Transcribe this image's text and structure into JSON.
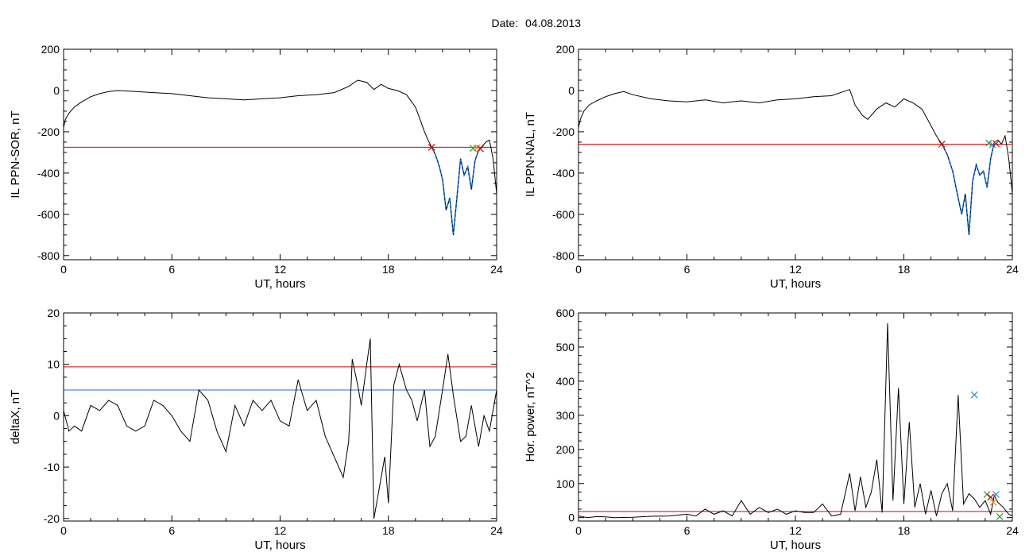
{
  "figure": {
    "title_prefix": "Date:",
    "date": "04.08.2013"
  },
  "colors": {
    "trace": "#000000",
    "threshold_red": "#d00000",
    "threshold_blue": "#1f6fd0",
    "highlight": "#1f6fd0",
    "marker_red": "#d00000",
    "marker_green": "#2a9a2a",
    "marker_orange": "#e08a00",
    "marker_blue": "#1f8fd0"
  },
  "chart_data": [
    {
      "id": "sor",
      "type": "line",
      "xlabel": "UT, hours",
      "ylabel": "IL PPN-SOR, nT",
      "xlim": [
        0,
        24
      ],
      "ylim": [
        -820,
        200
      ],
      "xticks": [
        0,
        6,
        12,
        18,
        24
      ],
      "yticks": [
        -800,
        -600,
        -400,
        -200,
        0,
        200
      ],
      "hlines": [
        {
          "y": -275,
          "color": "red"
        }
      ],
      "series": [
        {
          "x": [
            0,
            0.1,
            0.3,
            0.6,
            1,
            1.5,
            2,
            2.5,
            3,
            4,
            5,
            6,
            7,
            8,
            9,
            10,
            11,
            12,
            13,
            14,
            15,
            15.8,
            16.3,
            16.8,
            17.2,
            17.6,
            18,
            18.5,
            19,
            19.5,
            19.8,
            20,
            20.2,
            20.4
          ],
          "y": [
            -180,
            -140,
            -110,
            -80,
            -55,
            -30,
            -15,
            -5,
            0,
            -5,
            -10,
            -15,
            -25,
            -35,
            -40,
            -45,
            -40,
            -35,
            -25,
            -20,
            -10,
            20,
            50,
            40,
            5,
            30,
            10,
            0,
            -20,
            -80,
            -150,
            -200,
            -240,
            -275
          ]
        }
      ],
      "highlight_series": {
        "x": [
          20.4,
          20.6,
          20.8,
          21,
          21.2,
          21.4,
          21.6,
          21.8,
          22,
          22.2,
          22.4,
          22.6,
          22.8,
          23
        ],
        "y": [
          -275,
          -310,
          -360,
          -430,
          -580,
          -520,
          -700,
          -520,
          -330,
          -410,
          -370,
          -480,
          -340,
          -290
        ]
      },
      "tail_series": {
        "x": [
          23,
          23.2,
          23.4,
          23.6,
          23.8,
          24
        ],
        "y": [
          -290,
          -270,
          -250,
          -240,
          -330,
          -500
        ]
      },
      "markers": [
        {
          "x": 20.4,
          "y": -275,
          "color": "red"
        },
        {
          "x": 22.7,
          "y": -280,
          "color": "green"
        },
        {
          "x": 22.9,
          "y": -278,
          "color": "orange"
        },
        {
          "x": 23.1,
          "y": -282,
          "color": "red"
        }
      ]
    },
    {
      "id": "nal",
      "type": "line",
      "xlabel": "UT, hours",
      "ylabel": "IL PPN-NAL, nT",
      "xlim": [
        0,
        24
      ],
      "ylim": [
        -820,
        200
      ],
      "xticks": [
        0,
        6,
        12,
        18,
        24
      ],
      "yticks": [
        -800,
        -600,
        -400,
        -200,
        0,
        200
      ],
      "hlines": [
        {
          "y": -260,
          "color": "red"
        }
      ],
      "series": [
        {
          "x": [
            0,
            0.1,
            0.3,
            0.6,
            1,
            1.5,
            2,
            2.5,
            3,
            4,
            5,
            6,
            7,
            8,
            9,
            10,
            11,
            12,
            13,
            14,
            15,
            15.3,
            15.7,
            16,
            16.5,
            17,
            17.5,
            18,
            18.5,
            19,
            19.5,
            19.8,
            20.1
          ],
          "y": [
            -180,
            -140,
            -100,
            -70,
            -50,
            -30,
            -15,
            -5,
            -20,
            -40,
            -50,
            -55,
            -45,
            -60,
            -50,
            -60,
            -45,
            -40,
            -30,
            -25,
            5,
            -70,
            -120,
            -140,
            -90,
            -60,
            -80,
            -40,
            -60,
            -90,
            -170,
            -220,
            -260
          ]
        }
      ],
      "highlight_series": {
        "x": [
          20.1,
          20.4,
          20.7,
          21,
          21.2,
          21.4,
          21.6,
          21.8,
          22,
          22.2,
          22.4,
          22.6,
          22.8,
          23
        ],
        "y": [
          -260,
          -310,
          -390,
          -520,
          -600,
          -500,
          -700,
          -440,
          -360,
          -410,
          -390,
          -470,
          -330,
          -250
        ]
      },
      "tail_series": {
        "x": [
          23,
          23.2,
          23.4,
          23.6,
          23.8,
          24
        ],
        "y": [
          -250,
          -240,
          -260,
          -220,
          -330,
          -500
        ]
      },
      "markers": [
        {
          "x": 20.1,
          "y": -260,
          "color": "red"
        },
        {
          "x": 22.7,
          "y": -255,
          "color": "green"
        },
        {
          "x": 22.9,
          "y": -262,
          "color": "blue"
        },
        {
          "x": 23.1,
          "y": -258,
          "color": "red"
        }
      ]
    },
    {
      "id": "deltax",
      "type": "line",
      "xlabel": "UT, hours",
      "ylabel": "deltaX, nT",
      "xlim": [
        0,
        24
      ],
      "ylim": [
        -20.5,
        20
      ],
      "xticks": [
        0,
        6,
        12,
        18,
        24
      ],
      "yticks": [
        -20,
        -10,
        0,
        10,
        20
      ],
      "hlines": [
        {
          "y": 9.5,
          "color": "red"
        },
        {
          "y": 5,
          "color": "blue"
        }
      ],
      "series": [
        {
          "x": [
            0,
            0.3,
            0.6,
            1,
            1.5,
            2,
            2.5,
            3,
            3.5,
            4,
            4.5,
            5,
            5.5,
            6,
            6.5,
            7,
            7.5,
            8,
            8.5,
            9,
            9.5,
            10,
            10.5,
            11,
            11.5,
            12,
            12.5,
            13,
            13.5,
            14,
            14.5,
            15,
            15.5,
            15.8,
            16,
            16.3,
            16.5,
            16.8,
            17,
            17.2,
            17.5,
            17.8,
            18,
            18.3,
            18.6,
            19,
            19.3,
            19.6,
            20,
            20.3,
            20.6,
            21,
            21.3,
            21.6,
            22,
            22.3,
            22.6,
            23,
            23.3,
            23.6,
            24
          ],
          "y": [
            1,
            -3,
            -2,
            -3,
            2,
            1,
            3,
            2,
            -2,
            -3,
            -2,
            3,
            2,
            0,
            -3,
            -5,
            5,
            3,
            -3,
            -7,
            2,
            -2,
            3,
            1,
            3,
            -1,
            -2,
            7,
            1,
            3,
            -4,
            -8,
            -12,
            -5,
            11,
            6,
            2,
            10,
            15,
            -20,
            -14,
            -8,
            -17,
            6,
            10,
            5,
            3,
            -1,
            5,
            -6,
            -4,
            5,
            12,
            4,
            -5,
            -4,
            2,
            -6,
            0,
            -3,
            5
          ]
        }
      ],
      "markers": []
    },
    {
      "id": "power",
      "type": "line",
      "xlabel": "UT, hours",
      "ylabel": "Hor. power, nT^2",
      "xlim": [
        0,
        24
      ],
      "ylim": [
        -10,
        600
      ],
      "xticks": [
        0,
        6,
        12,
        18,
        24
      ],
      "yticks": [
        0,
        100,
        200,
        300,
        400,
        500,
        600
      ],
      "hlines": [
        {
          "y": 18,
          "color": "red"
        }
      ],
      "series": [
        {
          "x": [
            0,
            0.5,
            1,
            1.5,
            2,
            3,
            4,
            5,
            6,
            6.5,
            7,
            7.5,
            8,
            8.5,
            9,
            9.5,
            10,
            10.5,
            11,
            11.5,
            12,
            12.5,
            13,
            13.5,
            14,
            14.5,
            15,
            15.3,
            15.6,
            15.9,
            16.2,
            16.5,
            16.8,
            17.1,
            17.4,
            17.7,
            18,
            18.3,
            18.6,
            18.9,
            19.2,
            19.5,
            19.8,
            20.1,
            20.4,
            20.7,
            21,
            21.3,
            21.6,
            21.9,
            22.2,
            22.5,
            22.8,
            23,
            23.2,
            23.5,
            23.8,
            24
          ],
          "y": [
            5,
            0,
            3,
            2,
            0,
            1,
            4,
            5,
            10,
            5,
            25,
            10,
            20,
            5,
            50,
            10,
            30,
            15,
            25,
            10,
            20,
            15,
            15,
            40,
            5,
            10,
            130,
            20,
            120,
            30,
            75,
            170,
            15,
            570,
            50,
            380,
            40,
            280,
            30,
            100,
            10,
            80,
            5,
            70,
            100,
            20,
            360,
            40,
            70,
            55,
            30,
            50,
            10,
            65,
            45,
            30,
            10,
            5
          ]
        }
      ],
      "markers": [
        {
          "x": 21.9,
          "y": 360,
          "color": "blue"
        },
        {
          "x": 22.6,
          "y": 68,
          "color": "green"
        },
        {
          "x": 22.8,
          "y": 60,
          "color": "red"
        },
        {
          "x": 22.95,
          "y": 45,
          "color": "orange"
        },
        {
          "x": 23.1,
          "y": 68,
          "color": "blue"
        },
        {
          "x": 23.3,
          "y": 3,
          "color": "green"
        }
      ]
    }
  ]
}
